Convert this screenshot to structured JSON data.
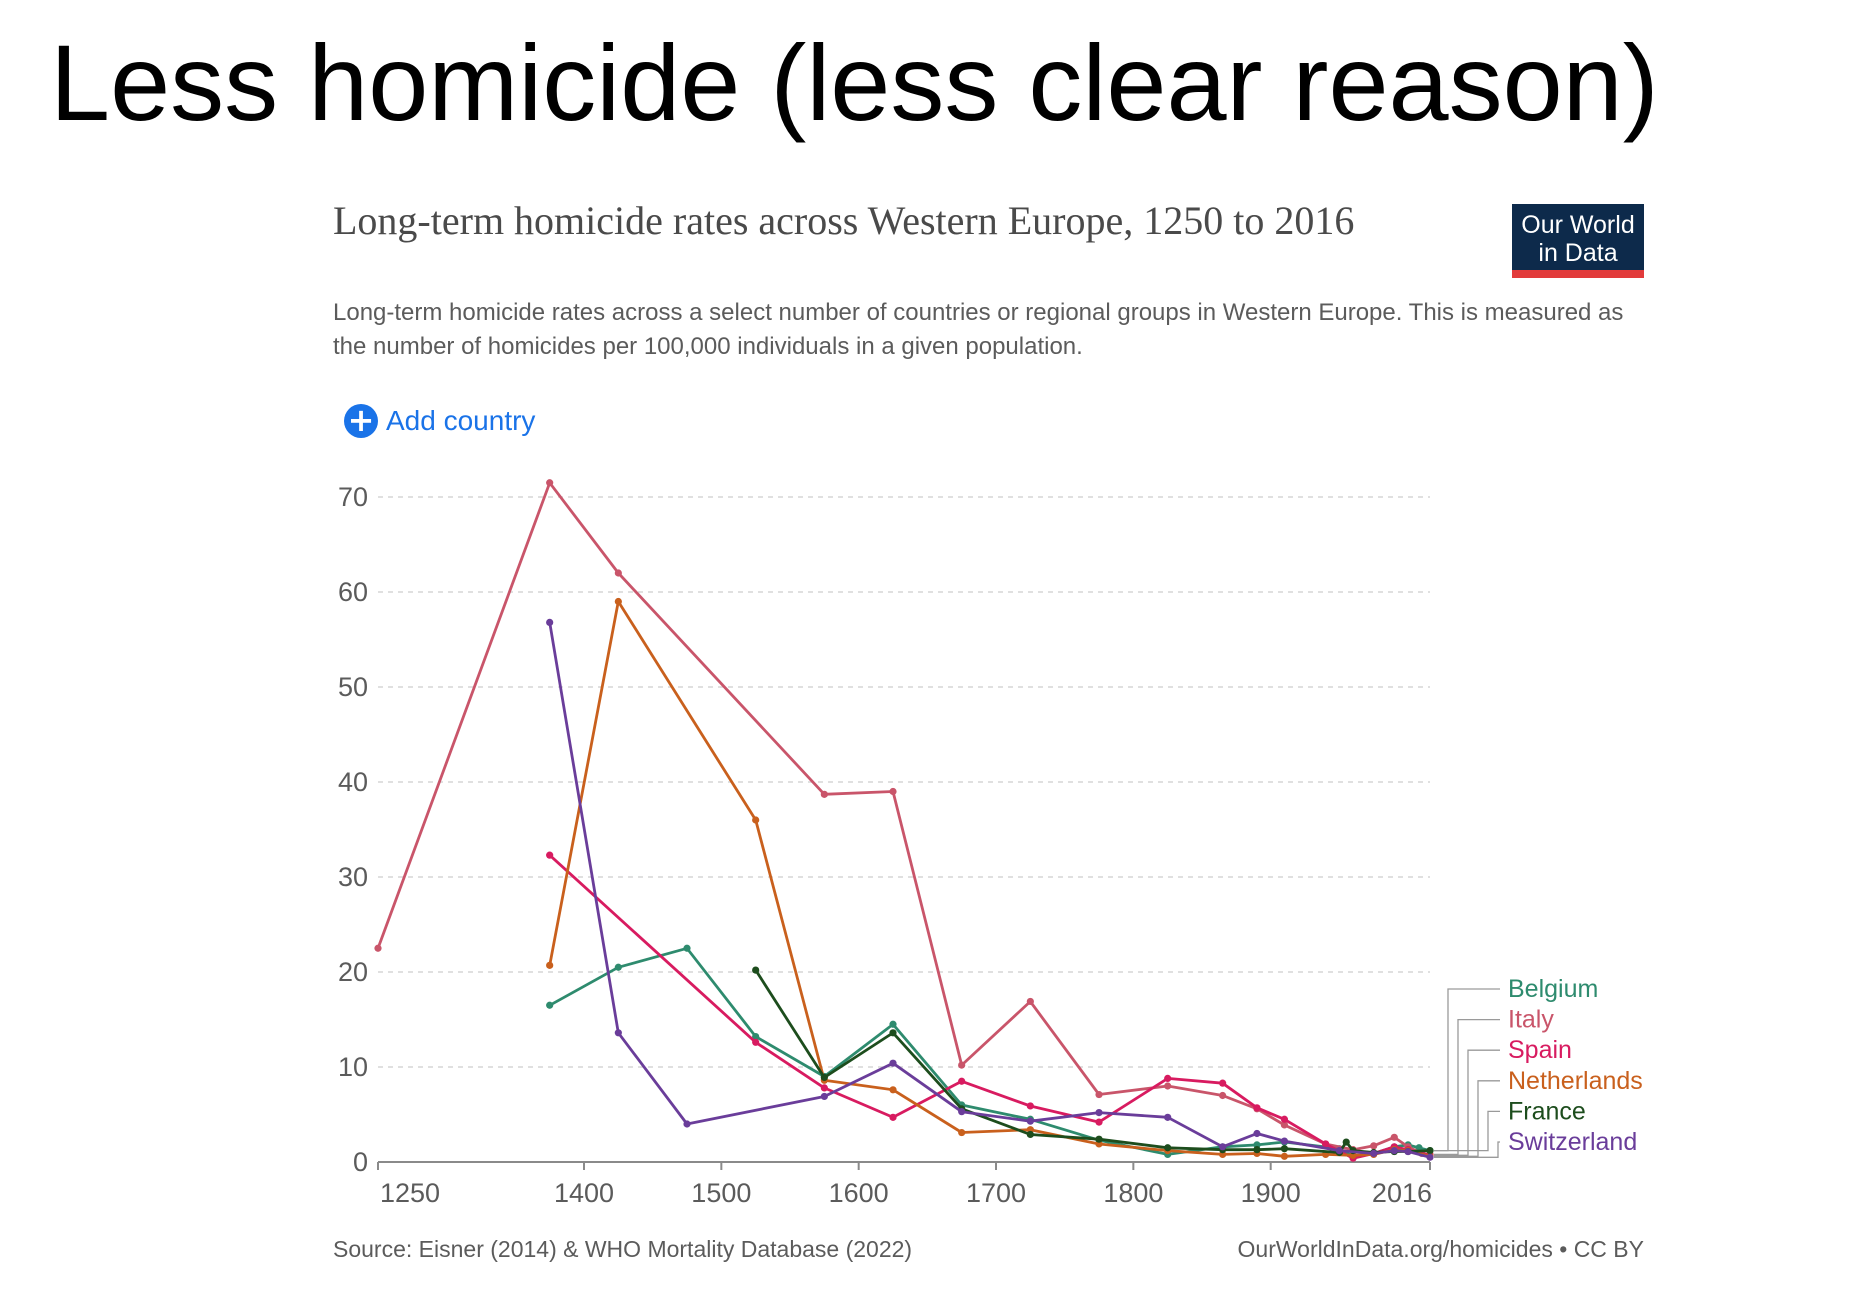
{
  "slide": {
    "title": "Less homicide (less clear reason)"
  },
  "chart_header": {
    "title": "Long-term homicide rates across Western Europe, 1250 to 2016",
    "subtitle": "Long-term homicide rates across a select number of countries or regional groups in Western Europe. This is measured as the number of homicides per 100,000 individuals in a given population.",
    "logo_line1": "Our World",
    "logo_line2": "in Data",
    "add_country_label": "Add country",
    "source": "Source: Eisner (2014) & WHO Mortality Database (2022)",
    "credit": "OurWorldInData.org/homicides • CC BY"
  },
  "chart_data": {
    "type": "line",
    "title": "Long-term homicide rates across Western Europe, 1250 to 2016",
    "xlabel": "",
    "ylabel": "",
    "xlim": [
      1250,
      2016
    ],
    "ylim": [
      0,
      70
    ],
    "x_ticks": [
      1250,
      1400,
      1500,
      1600,
      1700,
      1800,
      1900,
      2016
    ],
    "y_ticks": [
      0,
      10,
      20,
      30,
      40,
      50,
      60,
      70
    ],
    "grid": true,
    "legend_position": "right",
    "series": [
      {
        "name": "Belgium",
        "color": "#2e8b6e",
        "points": [
          [
            1375,
            16.5
          ],
          [
            1425,
            20.5
          ],
          [
            1475,
            22.5
          ],
          [
            1525,
            13.2
          ],
          [
            1575,
            9.0
          ],
          [
            1625,
            14.5
          ],
          [
            1675,
            6.0
          ],
          [
            1725,
            4.5
          ],
          [
            1775,
            2.3
          ],
          [
            1825,
            0.8
          ],
          [
            1865,
            1.6
          ],
          [
            1890,
            1.8
          ],
          [
            1910,
            2.1
          ],
          [
            1950,
            1.4
          ],
          [
            1960,
            0.6
          ],
          [
            1975,
            0.9
          ],
          [
            1990,
            1.6
          ],
          [
            2000,
            1.8
          ],
          [
            2008,
            1.5
          ],
          [
            2016,
            1.2
          ]
        ]
      },
      {
        "name": "Italy",
        "color": "#c9556a",
        "points": [
          [
            1250,
            22.5
          ],
          [
            1375,
            71.5
          ],
          [
            1425,
            62.0
          ],
          [
            1575,
            38.7
          ],
          [
            1625,
            39.0
          ],
          [
            1675,
            10.2
          ],
          [
            1725,
            16.9
          ],
          [
            1775,
            7.1
          ],
          [
            1825,
            8.0
          ],
          [
            1865,
            7.0
          ],
          [
            1890,
            5.6
          ],
          [
            1910,
            3.9
          ],
          [
            1940,
            1.9
          ],
          [
            1960,
            1.3
          ],
          [
            1975,
            1.7
          ],
          [
            1990,
            2.6
          ],
          [
            2000,
            1.6
          ],
          [
            2010,
            0.9
          ],
          [
            2016,
            0.8
          ]
        ]
      },
      {
        "name": "Spain",
        "color": "#d81b60",
        "points": [
          [
            1375,
            32.3
          ],
          [
            1525,
            12.6
          ],
          [
            1575,
            7.8
          ],
          [
            1625,
            4.7
          ],
          [
            1675,
            8.5
          ],
          [
            1725,
            5.9
          ],
          [
            1775,
            4.2
          ],
          [
            1825,
            8.8
          ],
          [
            1865,
            8.3
          ],
          [
            1890,
            5.7
          ],
          [
            1910,
            4.5
          ],
          [
            1940,
            1.9
          ],
          [
            1960,
            0.4
          ],
          [
            1975,
            0.9
          ],
          [
            1990,
            1.6
          ],
          [
            2000,
            1.3
          ],
          [
            2016,
            0.7
          ]
        ]
      },
      {
        "name": "Netherlands",
        "color": "#c9601d",
        "points": [
          [
            1375,
            20.7
          ],
          [
            1425,
            59.0
          ],
          [
            1525,
            36.0
          ],
          [
            1575,
            8.6
          ],
          [
            1625,
            7.6
          ],
          [
            1675,
            3.1
          ],
          [
            1725,
            3.4
          ],
          [
            1775,
            1.9
          ],
          [
            1825,
            1.2
          ],
          [
            1865,
            0.8
          ],
          [
            1890,
            0.9
          ],
          [
            1910,
            0.6
          ],
          [
            1940,
            0.8
          ],
          [
            1960,
            0.7
          ],
          [
            1975,
            0.8
          ],
          [
            1990,
            1.3
          ],
          [
            2000,
            1.2
          ],
          [
            2016,
            0.6
          ]
        ]
      },
      {
        "name": "France",
        "color": "#1d4d1d",
        "points": [
          [
            1525,
            20.2
          ],
          [
            1575,
            8.9
          ],
          [
            1625,
            13.6
          ],
          [
            1675,
            5.6
          ],
          [
            1725,
            2.9
          ],
          [
            1775,
            2.4
          ],
          [
            1825,
            1.5
          ],
          [
            1865,
            1.3
          ],
          [
            1890,
            1.3
          ],
          [
            1910,
            1.4
          ],
          [
            1950,
            1.0
          ],
          [
            1955,
            2.1
          ],
          [
            1960,
            1.2
          ],
          [
            1975,
            1.0
          ],
          [
            1990,
            1.1
          ],
          [
            2000,
            1.1
          ],
          [
            2016,
            1.2
          ]
        ]
      },
      {
        "name": "Switzerland",
        "color": "#6a3d9a",
        "points": [
          [
            1375,
            56.8
          ],
          [
            1425,
            13.6
          ],
          [
            1475,
            4.0
          ],
          [
            1575,
            6.9
          ],
          [
            1625,
            10.4
          ],
          [
            1675,
            5.3
          ],
          [
            1725,
            4.3
          ],
          [
            1775,
            5.2
          ],
          [
            1825,
            4.7
          ],
          [
            1865,
            1.6
          ],
          [
            1890,
            3.0
          ],
          [
            1910,
            2.2
          ],
          [
            1950,
            1.2
          ],
          [
            1975,
            0.9
          ],
          [
            1990,
            1.2
          ],
          [
            2000,
            1.1
          ],
          [
            2016,
            0.5
          ]
        ]
      }
    ]
  }
}
